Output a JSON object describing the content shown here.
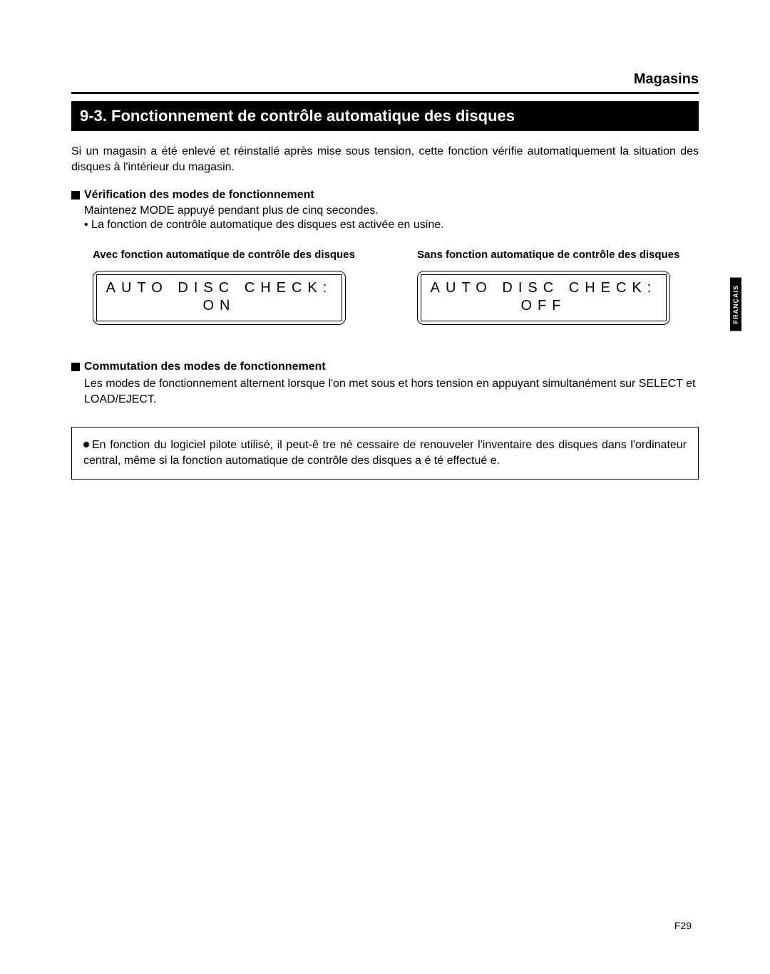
{
  "header": {
    "category": "Magasins"
  },
  "section": {
    "number": "9-3.",
    "title": "Fonctionnement de contrôle automatique des disques"
  },
  "intro": "Si un magasin a été enlevé et réinstallé après mise sous tension, cette fonction vérifie automatiquement la situation des disques à l'intérieur du magasin.",
  "verify": {
    "heading": "Vérification des modes de fonctionnement",
    "line1": "Maintenez MODE appuyé pendant plus de cinq secondes.",
    "bullet": "• La fonction de contrôle automatique des disques est activée en usine."
  },
  "displays": {
    "on": {
      "caption": "Avec fonction automatique de contrôle des disques",
      "line1": "AUTO DISC CHECK:",
      "line2": "ON"
    },
    "off": {
      "caption": "Sans fonction automatique de contrôle des disques",
      "line1": "AUTO DISC CHECK:",
      "line2": "OFF"
    }
  },
  "switch": {
    "heading": "Commutation des modes de fonctionnement",
    "body": "Les modes de fonctionnement alternent lorsque l'on met sous et hors tension en appuyant simultanément sur SELECT et LOAD/EJECT."
  },
  "note": "En fonction du logiciel pilote utilisé, il peut-ê tre né cessaire de renouveler l'inventaire des disques dans l'ordinateur central, même si la fonction automatique de contrôle des disques a é té effectué e.",
  "sidetab": "FRANÇAIS",
  "pagenum": "F29",
  "style": {
    "bg": "#ffffff",
    "fg": "#000000",
    "bar_bg": "#000000",
    "bar_fg": "#ffffff"
  }
}
